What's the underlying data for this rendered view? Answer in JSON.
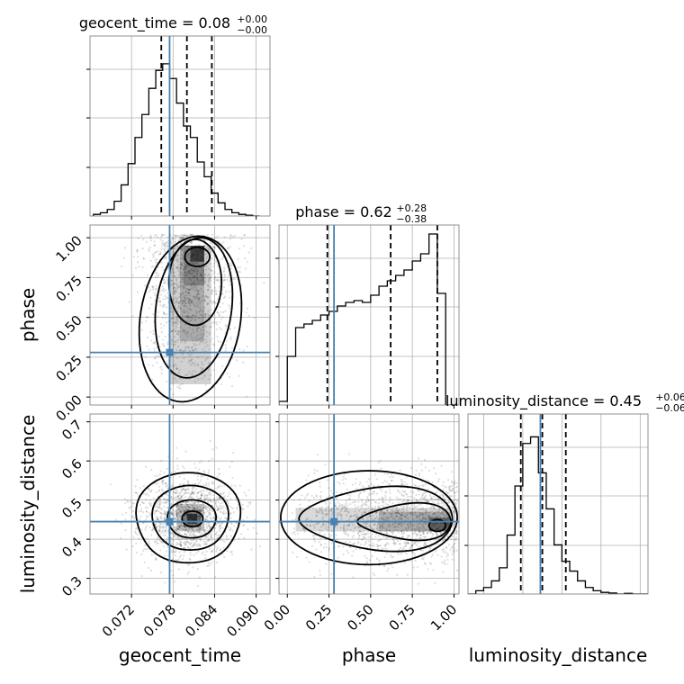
{
  "chart_data": [
    {
      "type": "histogram",
      "panel": "geocent_time-1d",
      "title_param": "geocent_time",
      "title_median": "0.08",
      "title_plus": "+0.00",
      "title_minus": "−0.00",
      "xlim": [
        0.066,
        0.092
      ],
      "ylim": [
        0,
        1.1
      ],
      "bin_start": 0.0665,
      "bin_width": 0.001,
      "values": [
        0.01,
        0.02,
        0.04,
        0.09,
        0.19,
        0.32,
        0.48,
        0.62,
        0.78,
        0.89,
        0.93,
        0.84,
        0.69,
        0.55,
        0.48,
        0.33,
        0.24,
        0.14,
        0.08,
        0.04,
        0.02,
        0.01,
        0.005,
        0.0
      ],
      "quantiles": [
        0.0763,
        0.08,
        0.0836
      ],
      "truth": 0.0775
    },
    {
      "type": "histogram",
      "panel": "phase-1d",
      "title_param": "phase",
      "title_median": "0.62",
      "title_plus": "+0.28",
      "title_minus": "−0.38",
      "xlim": [
        -0.05,
        1.03
      ],
      "ylim": [
        0,
        1.0
      ],
      "bin_start": -0.05,
      "bin_width": 0.05,
      "values": [
        0.02,
        0.27,
        0.43,
        0.45,
        0.47,
        0.5,
        0.52,
        0.55,
        0.57,
        0.58,
        0.57,
        0.61,
        0.66,
        0.69,
        0.72,
        0.75,
        0.8,
        0.84,
        0.95,
        0.62,
        0.0
      ],
      "quantiles": [
        0.24,
        0.62,
        0.9
      ],
      "truth": 0.28
    },
    {
      "type": "histogram",
      "panel": "luminosity_distance-1d",
      "title_param": "luminosity_distance",
      "title_median": "0.45",
      "title_plus": "+0.06",
      "title_minus": "−0.06",
      "xlim": [
        0.26,
        0.72
      ],
      "ylim": [
        0,
        0.55
      ],
      "bin_start": 0.26,
      "bin_width": 0.02,
      "values": [
        0.0,
        0.01,
        0.02,
        0.04,
        0.08,
        0.18,
        0.33,
        0.46,
        0.48,
        0.37,
        0.26,
        0.15,
        0.1,
        0.07,
        0.04,
        0.02,
        0.01,
        0.005,
        0.003,
        0.0,
        0.002,
        0.0,
        0.0
      ],
      "quantiles": [
        0.395,
        0.45,
        0.51
      ],
      "truth": 0.445
    },
    {
      "type": "contour",
      "panel": "phase-vs-geocent_time",
      "x": "geocent_time",
      "y": "phase",
      "xlim": [
        0.066,
        0.092
      ],
      "ylim": [
        -0.05,
        1.08
      ],
      "truth": [
        0.0775,
        0.28
      ],
      "peak": [
        0.0815,
        0.92
      ]
    },
    {
      "type": "contour",
      "panel": "luminosity_distance-vs-geocent_time",
      "x": "geocent_time",
      "y": "luminosity_distance",
      "xlim": [
        0.066,
        0.092
      ],
      "ylim": [
        0.26,
        0.72
      ],
      "truth": [
        0.0775,
        0.445
      ],
      "peak": [
        0.0805,
        0.452
      ]
    },
    {
      "type": "contour",
      "panel": "luminosity_distance-vs-phase",
      "x": "phase",
      "y": "luminosity_distance",
      "xlim": [
        -0.05,
        1.03
      ],
      "ylim": [
        0.26,
        0.72
      ],
      "truth": [
        0.28,
        0.445
      ],
      "peak": [
        0.92,
        0.435
      ]
    }
  ],
  "axes": {
    "geocent_time": {
      "label": "geocent_time",
      "ticks": [
        "0.072",
        "0.078",
        "0.084",
        "0.090"
      ],
      "tick_values": [
        0.072,
        0.078,
        0.084,
        0.09
      ]
    },
    "phase": {
      "label": "phase",
      "ticks": [
        "0.00",
        "0.25",
        "0.50",
        "0.75",
        "1.00"
      ],
      "tick_values": [
        0.0,
        0.25,
        0.5,
        0.75,
        1.0
      ]
    },
    "luminosity_distance": {
      "label": "luminosity_distance",
      "ticks": [
        "0.3",
        "0.4",
        "0.5",
        "0.6",
        "0.7"
      ],
      "tick_values": [
        0.3,
        0.4,
        0.5,
        0.6,
        0.7
      ]
    }
  },
  "colors": {
    "truth": "#4682b4",
    "hist": "#000000",
    "quantile": "#000000",
    "grid": "#b0b0b0",
    "frame": "#000000"
  }
}
